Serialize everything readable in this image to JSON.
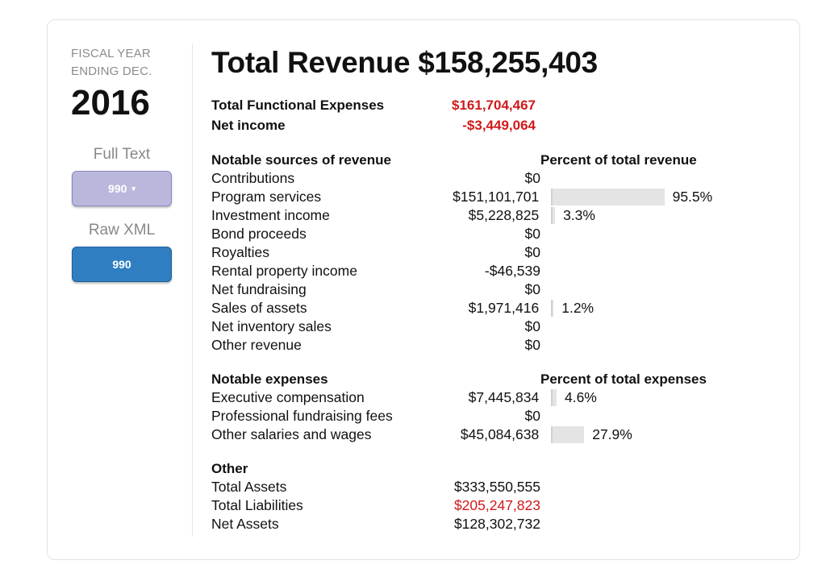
{
  "sidebar": {
    "fiscal_label_line1": "FISCAL YEAR",
    "fiscal_label_line2": "ENDING DEC.",
    "year": "2016",
    "full_text_label": "Full Text",
    "full_text_button": "990",
    "full_text_caret": "▾",
    "raw_xml_label": "Raw XML",
    "raw_xml_button": "990"
  },
  "main": {
    "title": "Total Revenue $158,255,403",
    "summary": [
      {
        "label": "Total Functional Expenses",
        "value": "$161,704,467"
      },
      {
        "label": "Net income",
        "value": "-$3,449,064"
      }
    ],
    "revenue": {
      "heading": "Notable sources of revenue",
      "percent_heading": "Percent of total revenue",
      "rows": [
        {
          "label": "Contributions",
          "value": "$0",
          "percent": null,
          "percent_label": ""
        },
        {
          "label": "Program services",
          "value": "$151,101,701",
          "percent": 95.5,
          "percent_label": "95.5%"
        },
        {
          "label": "Investment income",
          "value": "$5,228,825",
          "percent": 3.3,
          "percent_label": "3.3%"
        },
        {
          "label": "Bond proceeds",
          "value": "$0",
          "percent": null,
          "percent_label": ""
        },
        {
          "label": "Royalties",
          "value": "$0",
          "percent": null,
          "percent_label": ""
        },
        {
          "label": "Rental property income",
          "value": "-$46,539",
          "percent": null,
          "percent_label": ""
        },
        {
          "label": "Net fundraising",
          "value": "$0",
          "percent": null,
          "percent_label": ""
        },
        {
          "label": "Sales of assets",
          "value": "$1,971,416",
          "percent": 1.2,
          "percent_label": "1.2%"
        },
        {
          "label": "Net inventory sales",
          "value": "$0",
          "percent": null,
          "percent_label": ""
        },
        {
          "label": "Other revenue",
          "value": "$0",
          "percent": null,
          "percent_label": ""
        }
      ]
    },
    "expenses": {
      "heading": "Notable expenses",
      "percent_heading": "Percent of total expenses",
      "rows": [
        {
          "label": "Executive compensation",
          "value": "$7,445,834",
          "percent": 4.6,
          "percent_label": "4.6%"
        },
        {
          "label": "Professional fundraising fees",
          "value": "$0",
          "percent": null,
          "percent_label": ""
        },
        {
          "label": "Other salaries and wages",
          "value": "$45,084,638",
          "percent": 27.9,
          "percent_label": "27.9%"
        }
      ]
    },
    "other": {
      "heading": "Other",
      "rows": [
        {
          "label": "Total Assets",
          "value": "$333,550,555",
          "highlight": false
        },
        {
          "label": "Total Liabilities",
          "value": "$205,247,823",
          "highlight": true
        },
        {
          "label": "Net Assets",
          "value": "$128,302,732",
          "highlight": false
        }
      ]
    }
  },
  "colors": {
    "negative": "#d0191b",
    "bar": "#e4e4e4",
    "full_text_button": "#b9b8dc",
    "raw_xml_button": "#2f7ec1"
  }
}
